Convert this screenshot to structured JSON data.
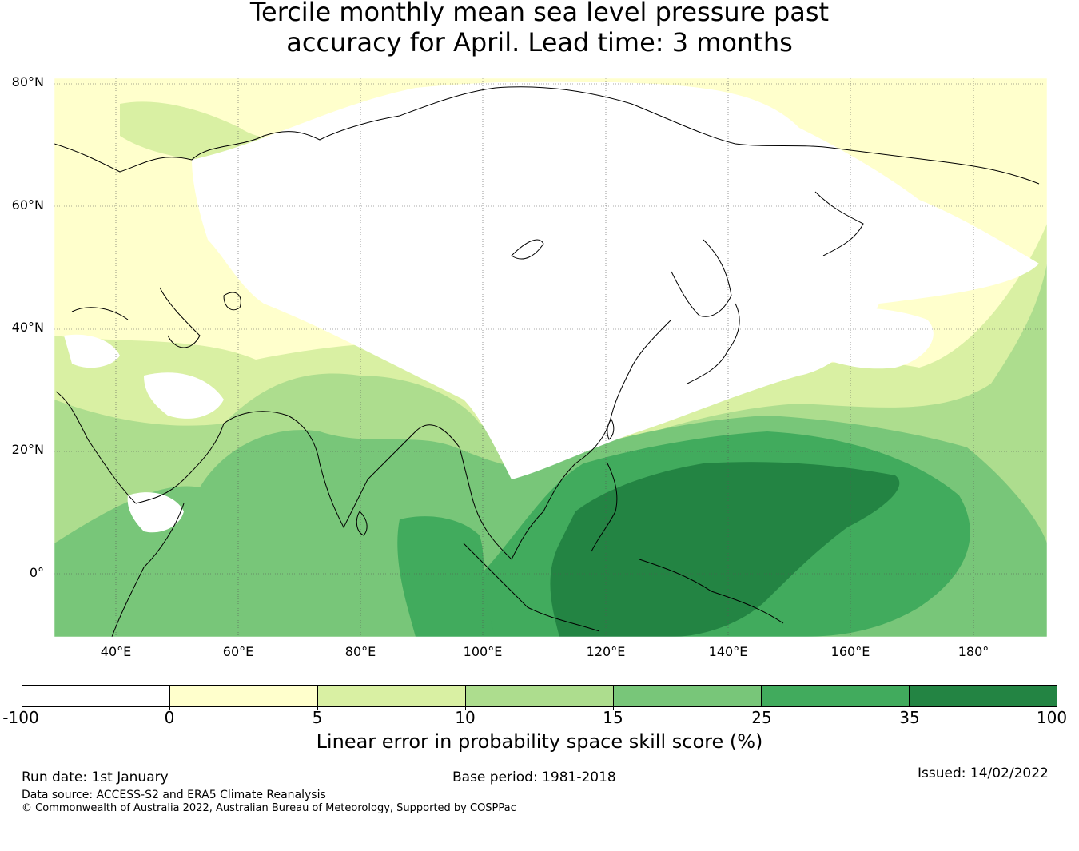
{
  "title_line1": "Tercile monthly mean sea level pressure past",
  "title_line2": "accuracy for April. Lead time: 3 months",
  "lat_labels": [
    "80°N",
    "60°N",
    "40°N",
    "20°N",
    "0°"
  ],
  "lon_labels": [
    "40°E",
    "60°E",
    "80°E",
    "100°E",
    "120°E",
    "140°E",
    "160°E",
    "180°"
  ],
  "colorbar": {
    "ticks": [
      "-100",
      "0",
      "5",
      "10",
      "15",
      "25",
      "35",
      "100"
    ],
    "colors": [
      "#ffffff",
      "#ffffcc",
      "#d9f0a3",
      "#addd8e",
      "#78c679",
      "#41ab5d",
      "#238443"
    ],
    "label": "Linear error in probability space skill score (%)"
  },
  "footer": {
    "run_date": "Run date: 1st January",
    "base_period": "Base period: 1981-2018",
    "issued": "Issued: 14/02/2022",
    "data_source": "Data source: ACCESS-S2 and ERA5 Climate Reanalysis",
    "copyright": "© Commonwealth of Australia 2022, Australian Bureau of Meteorology, Supported by COSPPac"
  }
}
